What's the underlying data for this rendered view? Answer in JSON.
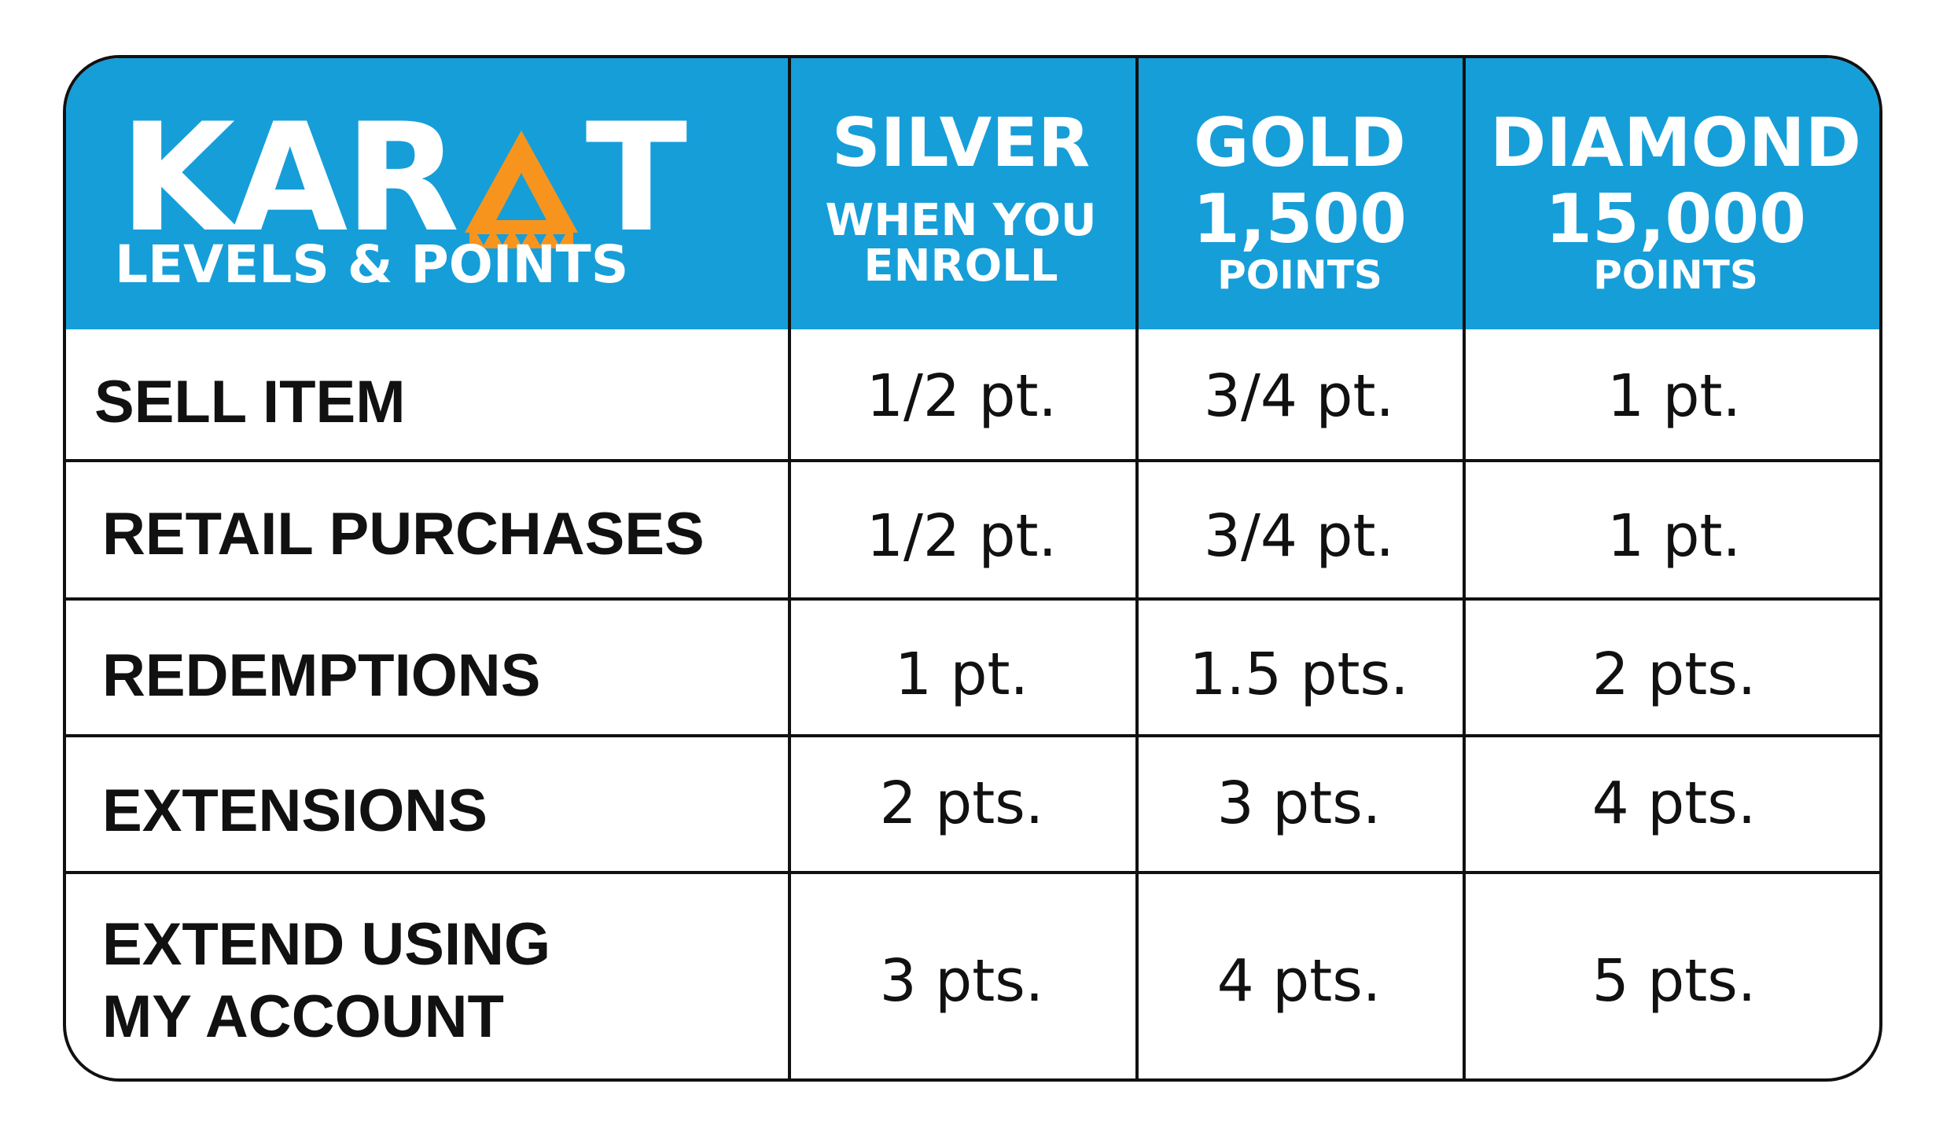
{
  "logo": {
    "word_left": "KAR",
    "word_right": "T",
    "subtitle": "LEVELS & POINTS",
    "accent_color": "#f7941d"
  },
  "colors": {
    "header": "#169ed9",
    "border": "#111111",
    "text": "#111111"
  },
  "tiers": [
    {
      "name": "SILVER",
      "requirement": "WHEN YOU ENROLL",
      "requirement_lines": [
        "WHEN YOU",
        "ENROLL"
      ]
    },
    {
      "name": "GOLD",
      "requirement_value": "1,500",
      "requirement_unit": "POINTS"
    },
    {
      "name": "DIAMOND",
      "requirement_value": "15,000",
      "requirement_unit": "POINTS"
    }
  ],
  "rows": [
    {
      "label": "SELL ITEM",
      "values": [
        "1/2 pt.",
        "3/4 pt.",
        "1 pt."
      ]
    },
    {
      "label": "RETAIL PURCHASES",
      "values": [
        "1/2 pt.",
        "3/4 pt.",
        "1 pt."
      ]
    },
    {
      "label": "REDEMPTIONS",
      "values": [
        "1 pt.",
        "1.5 pts.",
        "2 pts."
      ]
    },
    {
      "label": "EXTENSIONS",
      "values": [
        "2 pts.",
        "3 pts.",
        "4 pts."
      ]
    },
    {
      "label_lines": [
        "EXTEND USING",
        "MY ACCOUNT"
      ],
      "values": [
        "3 pts.",
        "4 pts.",
        "5 pts."
      ]
    }
  ]
}
